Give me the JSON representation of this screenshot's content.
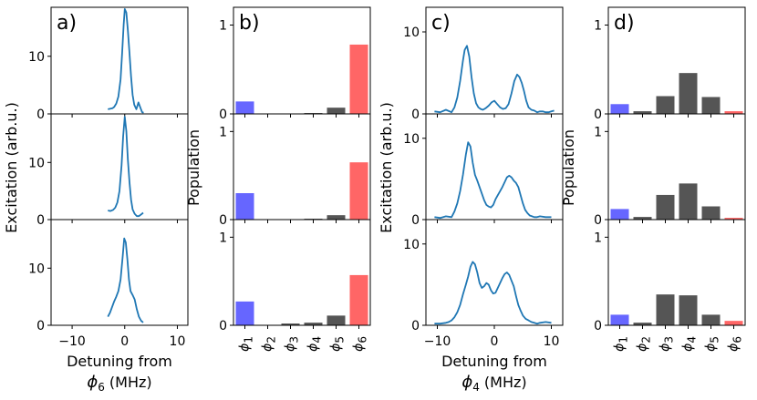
{
  "chart_data": [
    {
      "type": "line",
      "panel": "a)",
      "xlabel": "Detuning from",
      "xlabel_symbol": "ϕ",
      "xlabel_subscript": "6",
      "xlabel_unit": " (MHz)",
      "ylabel": "Excitation (arb.u.)",
      "xlim": [
        -14,
        12
      ],
      "xticks": [
        -10,
        0,
        10
      ],
      "xtick_labels": [
        "−10",
        "0",
        "10"
      ],
      "color": "#1f77b4",
      "subplots": [
        {
          "ylim": [
            0,
            18.5
          ],
          "yticks": [
            0,
            10
          ],
          "ytick_labels": [
            "0",
            "10"
          ],
          "x": [
            -3.2,
            -2.7,
            -2.3,
            -2.0,
            -1.6,
            -1.2,
            -0.8,
            -0.5,
            -0.2,
            0.0,
            0.3,
            0.6,
            0.9,
            1.2,
            1.5,
            1.8,
            2.2,
            2.6,
            3.0,
            3.3,
            3.6
          ],
          "y": [
            0.8,
            0.9,
            1.0,
            1.2,
            1.8,
            3.0,
            6.0,
            10.5,
            15.5,
            18.2,
            17.6,
            14.5,
            10.5,
            6.5,
            3.3,
            1.6,
            0.8,
            2.0,
            1.0,
            0.3,
            0.2
          ]
        },
        {
          "ylim": [
            0,
            18.5
          ],
          "yticks": [
            0,
            10
          ],
          "ytick_labels": [
            "0",
            "10"
          ],
          "x": [
            -3.2,
            -2.7,
            -2.2,
            -1.8,
            -1.4,
            -1.0,
            -0.6,
            -0.3,
            0.0,
            0.3,
            0.6,
            0.9,
            1.2,
            1.5,
            1.9,
            2.3,
            2.7,
            3.1,
            3.5
          ],
          "y": [
            1.6,
            1.5,
            1.7,
            2.1,
            3.0,
            5.0,
            9.5,
            14.5,
            18.0,
            15.5,
            10.5,
            6.5,
            3.5,
            1.8,
            1.0,
            0.6,
            0.6,
            0.9,
            1.2
          ]
        },
        {
          "ylim": [
            0,
            18.5
          ],
          "yticks": [
            0,
            10
          ],
          "ytick_labels": [
            "0",
            "10"
          ],
          "x": [
            -3.2,
            -2.8,
            -2.4,
            -2.0,
            -1.6,
            -1.2,
            -0.8,
            -0.4,
            -0.1,
            0.2,
            0.5,
            0.8,
            1.1,
            1.5,
            1.9,
            2.3,
            2.7,
            3.1,
            3.5
          ],
          "y": [
            1.5,
            2.2,
            3.2,
            4.2,
            5.0,
            6.0,
            8.0,
            12.0,
            15.2,
            14.5,
            11.5,
            8.0,
            6.0,
            5.3,
            4.5,
            2.8,
            1.5,
            0.8,
            0.5
          ]
        }
      ]
    },
    {
      "type": "bar",
      "panel": "b)",
      "ylabel": "Population",
      "categories": [
        "ϕ1",
        "ϕ2",
        "ϕ3",
        "ϕ4",
        "ϕ5",
        "ϕ6"
      ],
      "category_symbol": "ϕ",
      "category_subscripts": [
        "1",
        "2",
        "3",
        "4",
        "5",
        "6"
      ],
      "colors": [
        "#6666ff",
        "#555555",
        "#555555",
        "#555555",
        "#555555",
        "#ff6666"
      ],
      "ylim": [
        0,
        1.2
      ],
      "yticks": [
        0,
        1
      ],
      "ytick_labels": [
        "0",
        "1"
      ],
      "subplots": [
        {
          "values": [
            0.14,
            0.0,
            0.0,
            0.01,
            0.07,
            0.78
          ]
        },
        {
          "values": [
            0.3,
            0.0,
            0.0,
            0.01,
            0.05,
            0.65
          ]
        },
        {
          "values": [
            0.27,
            0.0,
            0.02,
            0.03,
            0.11,
            0.57
          ]
        }
      ]
    },
    {
      "type": "line",
      "panel": "c)",
      "xlabel": "Detuning from",
      "xlabel_symbol": "ϕ",
      "xlabel_subscript": "4",
      "xlabel_unit": " (MHz)",
      "ylabel": "Excitation (arb.u.)",
      "xlim": [
        -12,
        12
      ],
      "xticks": [
        -10,
        0,
        10
      ],
      "xtick_labels": [
        "−10",
        "0",
        "10"
      ],
      "color": "#1f77b4",
      "subplots": [
        {
          "ylim": [
            0,
            13
          ],
          "yticks": [
            0,
            10
          ],
          "ytick_labels": [
            "0",
            "10"
          ],
          "x": [
            -10.5,
            -9.5,
            -8.5,
            -7.5,
            -7.0,
            -6.5,
            -6.0,
            -5.5,
            -5.2,
            -4.8,
            -4.4,
            -4.0,
            -3.6,
            -3.2,
            -2.8,
            -2.4,
            -2.0,
            -1.5,
            -1.0,
            -0.5,
            0.0,
            0.5,
            1.0,
            1.5,
            2.0,
            2.5,
            3.0,
            3.5,
            4.0,
            4.4,
            4.8,
            5.2,
            5.6,
            6.0,
            6.5,
            7.0,
            7.5,
            8.0,
            8.5,
            9.0,
            9.5,
            10.0,
            10.5
          ],
          "y": [
            0.3,
            0.2,
            0.5,
            0.2,
            0.8,
            2.0,
            4.0,
            6.5,
            7.8,
            8.3,
            7.0,
            4.5,
            2.5,
            1.3,
            0.8,
            0.6,
            0.5,
            0.7,
            1.0,
            1.4,
            1.6,
            1.2,
            0.8,
            0.6,
            0.7,
            1.2,
            2.5,
            4.0,
            4.8,
            4.5,
            3.8,
            2.8,
            1.6,
            0.8,
            0.5,
            0.4,
            0.2,
            0.3,
            0.3,
            0.2,
            0.2,
            0.3,
            0.4
          ]
        },
        {
          "ylim": [
            0,
            13
          ],
          "yticks": [
            0,
            10
          ],
          "ytick_labels": [
            "0",
            "10"
          ],
          "x": [
            -10.5,
            -9.5,
            -8.5,
            -7.5,
            -7.0,
            -6.5,
            -6.0,
            -5.5,
            -5.0,
            -4.6,
            -4.2,
            -3.8,
            -3.4,
            -3.0,
            -2.6,
            -2.2,
            -1.8,
            -1.4,
            -1.0,
            -0.6,
            -0.2,
            0.2,
            0.6,
            1.0,
            1.4,
            1.8,
            2.2,
            2.6,
            3.0,
            3.4,
            3.8,
            4.2,
            4.6,
            5.0,
            5.4,
            5.8,
            6.2,
            6.6,
            7.0,
            7.5,
            8.0,
            9.0,
            10.0
          ],
          "y": [
            0.3,
            0.2,
            0.4,
            0.3,
            1.0,
            2.0,
            3.5,
            5.5,
            8.0,
            9.5,
            9.0,
            7.0,
            5.5,
            4.8,
            4.0,
            3.2,
            2.4,
            1.8,
            1.6,
            1.5,
            1.8,
            2.5,
            3.0,
            3.5,
            4.0,
            4.6,
            5.2,
            5.4,
            5.2,
            4.8,
            4.5,
            4.0,
            3.0,
            2.0,
            1.2,
            0.8,
            0.5,
            0.4,
            0.3,
            0.3,
            0.4,
            0.3,
            0.3
          ]
        },
        {
          "ylim": [
            0,
            13
          ],
          "yticks": [
            0,
            10
          ],
          "ytick_labels": [
            "0",
            "10"
          ],
          "x": [
            -10.5,
            -9.5,
            -8.5,
            -8.0,
            -7.5,
            -7.0,
            -6.5,
            -6.0,
            -5.5,
            -5.0,
            -4.6,
            -4.2,
            -3.8,
            -3.4,
            -3.0,
            -2.6,
            -2.2,
            -1.8,
            -1.4,
            -1.0,
            -0.6,
            -0.2,
            0.2,
            0.6,
            1.0,
            1.4,
            1.8,
            2.2,
            2.6,
            3.0,
            3.4,
            3.8,
            4.2,
            4.6,
            5.0,
            5.5,
            6.0,
            6.5,
            7.0,
            7.5,
            8.0,
            9.0,
            10.0
          ],
          "y": [
            0.2,
            0.2,
            0.3,
            0.4,
            0.6,
            1.0,
            1.6,
            2.5,
            3.8,
            5.0,
            6.0,
            7.2,
            7.8,
            7.5,
            6.5,
            5.2,
            4.6,
            4.8,
            5.2,
            5.0,
            4.3,
            3.9,
            4.0,
            4.6,
            5.2,
            5.8,
            6.3,
            6.5,
            6.2,
            5.5,
            4.8,
            3.6,
            2.5,
            1.8,
            1.2,
            0.8,
            0.6,
            0.4,
            0.3,
            0.2,
            0.3,
            0.4,
            0.3
          ]
        }
      ]
    },
    {
      "type": "bar",
      "panel": "d)",
      "ylabel": "Population",
      "categories": [
        "ϕ1",
        "ϕ2",
        "ϕ3",
        "ϕ4",
        "ϕ5",
        "ϕ6"
      ],
      "category_symbol": "ϕ",
      "category_subscripts": [
        "1",
        "2",
        "3",
        "4",
        "5",
        "6"
      ],
      "colors": [
        "#6666ff",
        "#555555",
        "#555555",
        "#555555",
        "#555555",
        "#ff6666"
      ],
      "ylim": [
        0,
        1.2
      ],
      "yticks": [
        0,
        1
      ],
      "ytick_labels": [
        "0",
        "1"
      ],
      "subplots": [
        {
          "values": [
            0.11,
            0.03,
            0.2,
            0.46,
            0.19,
            0.03
          ]
        },
        {
          "values": [
            0.12,
            0.03,
            0.28,
            0.41,
            0.15,
            0.02
          ]
        },
        {
          "values": [
            0.12,
            0.03,
            0.35,
            0.34,
            0.12,
            0.05
          ]
        }
      ]
    }
  ]
}
